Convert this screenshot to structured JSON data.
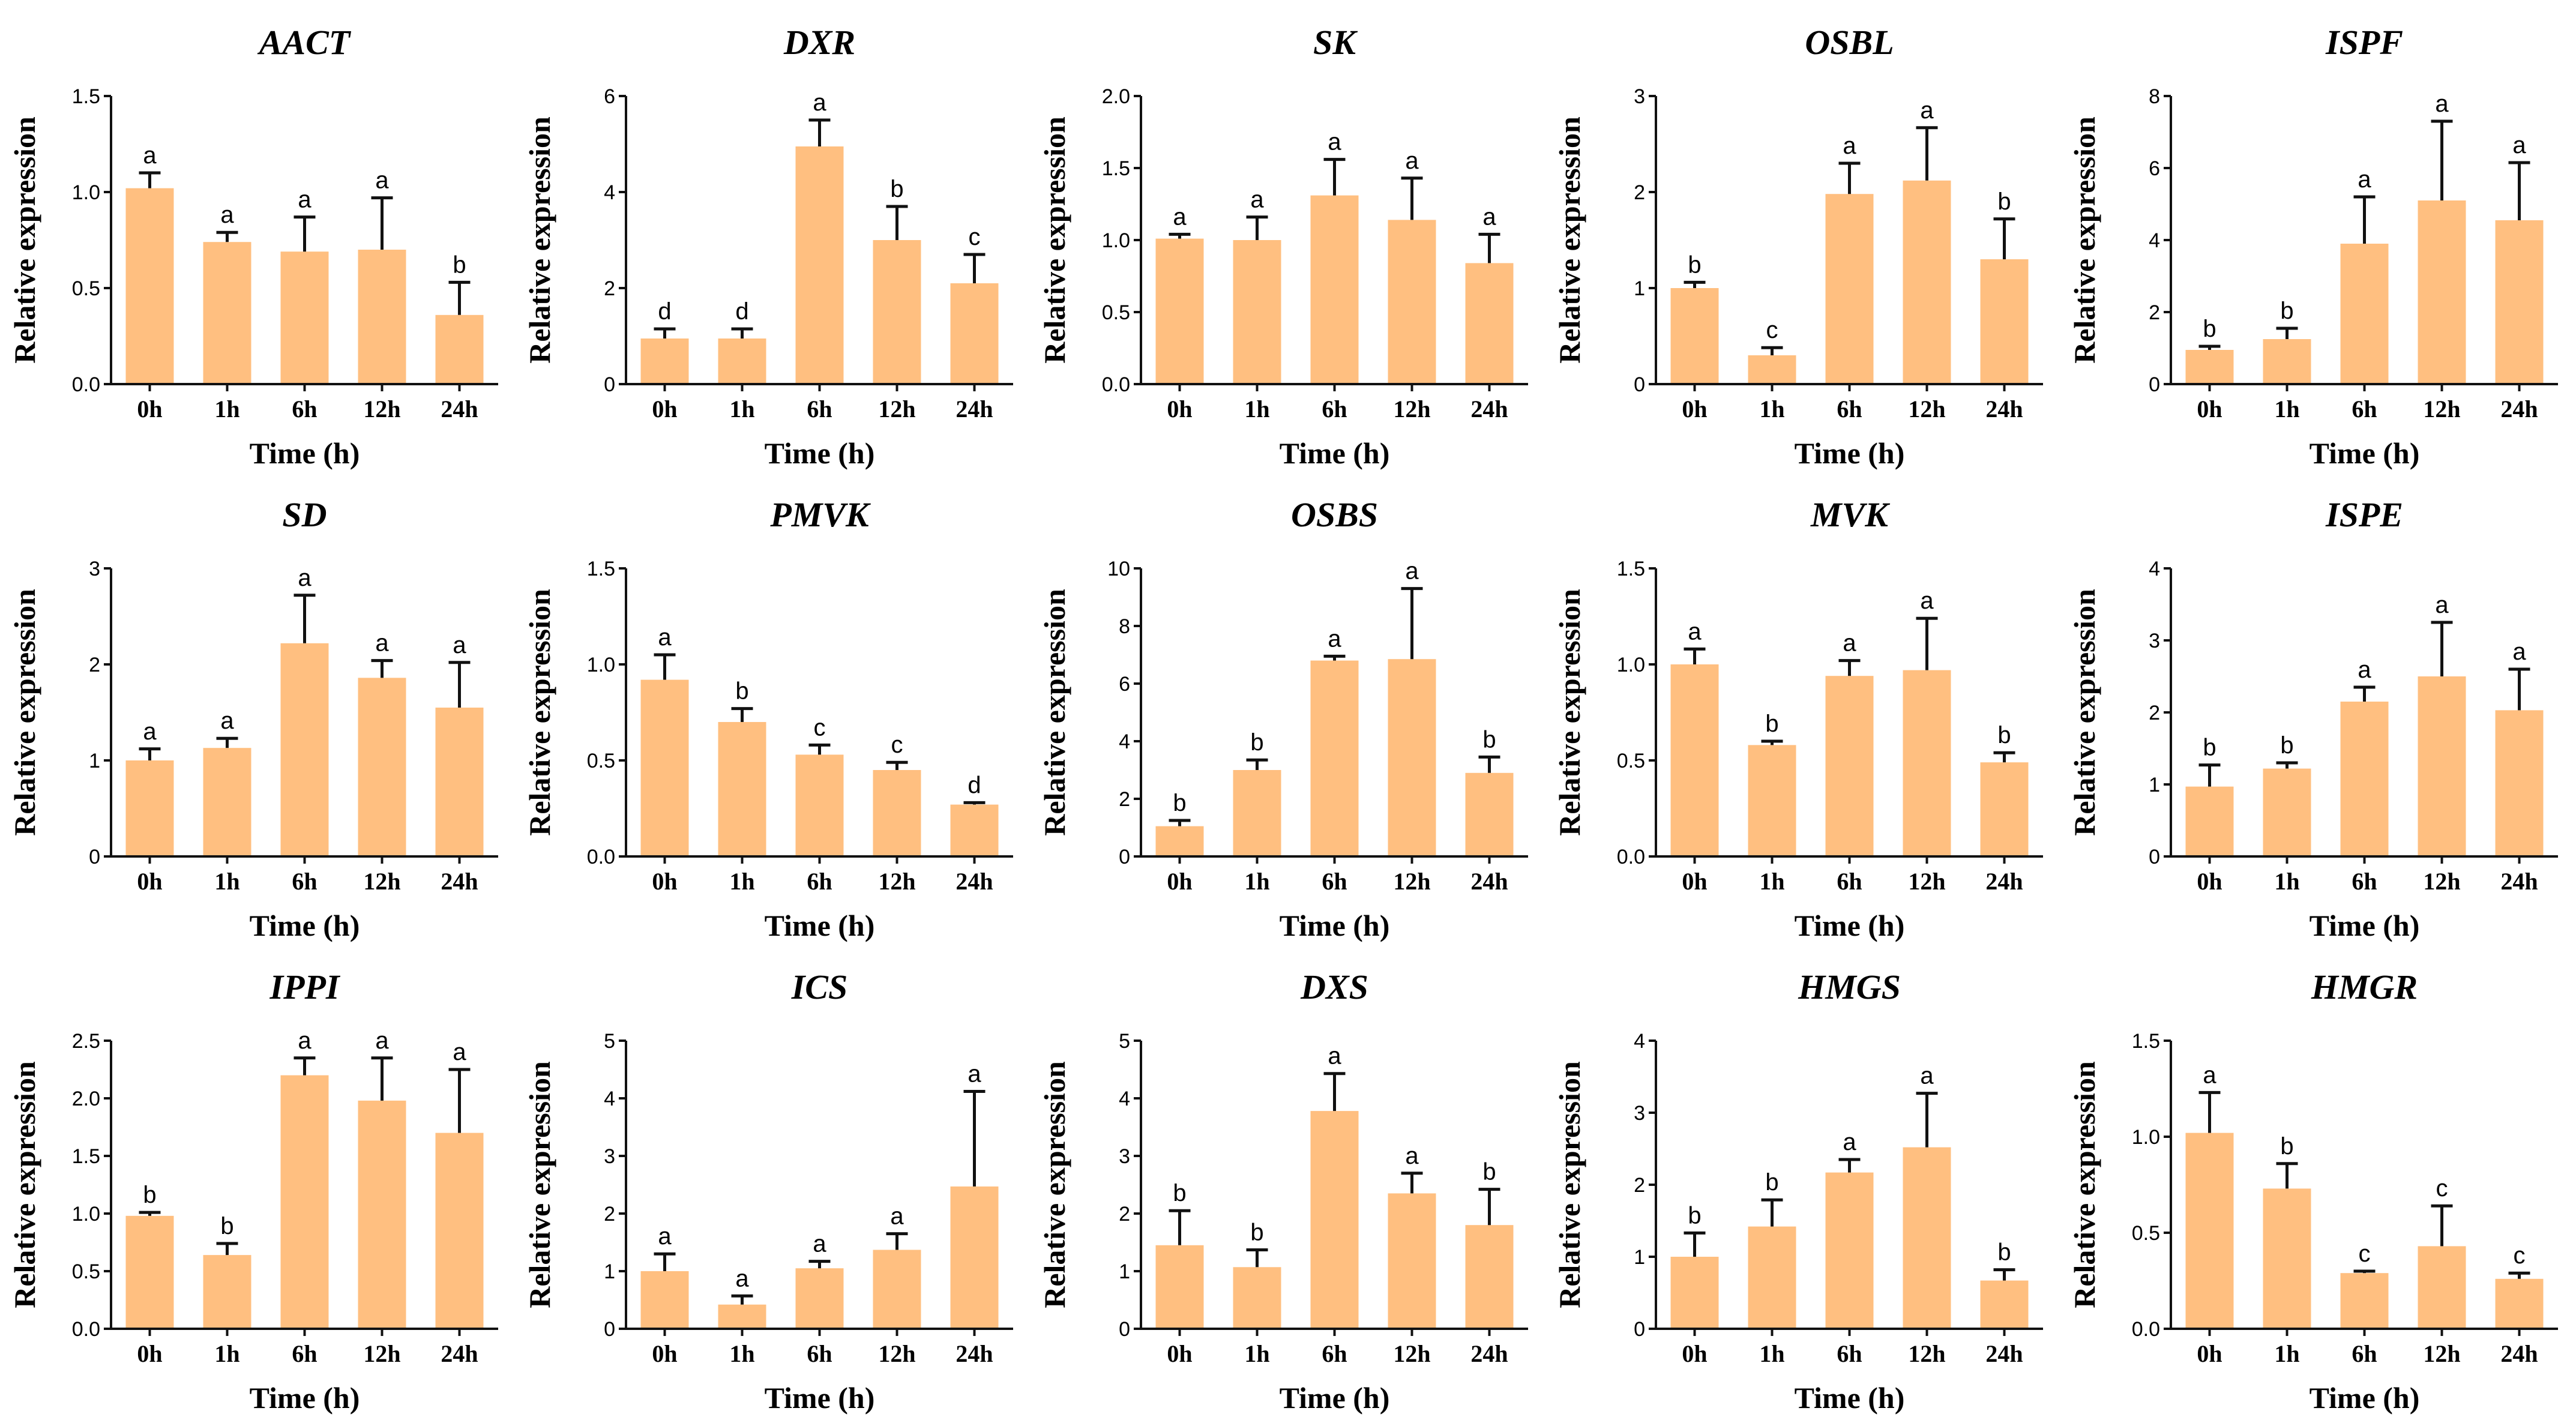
{
  "chart_data": [
    {
      "type": "bar",
      "title": "AACT",
      "xlabel": "Time (h)",
      "ylabel": "Relative expression",
      "categories": [
        "0h",
        "1h",
        "6h",
        "12h",
        "24h"
      ],
      "values": [
        1.02,
        0.74,
        0.69,
        0.7,
        0.36
      ],
      "errors": [
        0.08,
        0.05,
        0.18,
        0.27,
        0.17
      ],
      "letters": [
        "a",
        "a",
        "a",
        "a",
        "b"
      ],
      "ylim": [
        0,
        1.5
      ],
      "yticks": [
        "0.0",
        "0.5",
        "1.0",
        "1.5"
      ]
    },
    {
      "type": "bar",
      "title": "DXR",
      "xlabel": "Time (h)",
      "ylabel": "Relative expression",
      "categories": [
        "0h",
        "1h",
        "6h",
        "12h",
        "24h"
      ],
      "values": [
        0.95,
        0.95,
        4.95,
        3.0,
        2.1
      ],
      "errors": [
        0.2,
        0.2,
        0.55,
        0.7,
        0.6
      ],
      "letters": [
        "d",
        "d",
        "a",
        "b",
        "c"
      ],
      "ylim": [
        0,
        6
      ],
      "yticks": [
        "0",
        "2",
        "4",
        "6"
      ]
    },
    {
      "type": "bar",
      "title": "SK",
      "xlabel": "Time (h)",
      "ylabel": "Relative expression",
      "categories": [
        "0h",
        "1h",
        "6h",
        "12h",
        "24h"
      ],
      "values": [
        1.01,
        1.0,
        1.31,
        1.14,
        0.84
      ],
      "errors": [
        0.03,
        0.16,
        0.25,
        0.29,
        0.2
      ],
      "letters": [
        "a",
        "a",
        "a",
        "a",
        "a"
      ],
      "ylim": [
        0,
        2
      ],
      "yticks": [
        "0.0",
        "0.5",
        "1.0",
        "1.5",
        "2.0"
      ]
    },
    {
      "type": "bar",
      "title": "OSBL",
      "xlabel": "Time (h)",
      "ylabel": "Relative expression",
      "categories": [
        "0h",
        "1h",
        "6h",
        "12h",
        "24h"
      ],
      "values": [
        1.0,
        0.3,
        1.98,
        2.12,
        1.3
      ],
      "errors": [
        0.06,
        0.08,
        0.32,
        0.55,
        0.42
      ],
      "letters": [
        "b",
        "c",
        "a",
        "a",
        "b"
      ],
      "ylim": [
        0,
        3
      ],
      "yticks": [
        "0",
        "1",
        "2",
        "3"
      ]
    },
    {
      "type": "bar",
      "title": "ISPF",
      "xlabel": "Time (h)",
      "ylabel": "Relative expression",
      "categories": [
        "0h",
        "1h",
        "6h",
        "12h",
        "24h"
      ],
      "values": [
        0.95,
        1.25,
        3.9,
        5.1,
        4.55
      ],
      "errors": [
        0.1,
        0.3,
        1.3,
        2.2,
        1.6
      ],
      "letters": [
        "b",
        "b",
        "a",
        "a",
        "a"
      ],
      "ylim": [
        0,
        8
      ],
      "yticks": [
        "0",
        "2",
        "4",
        "6",
        "8"
      ]
    },
    {
      "type": "bar",
      "title": "SD",
      "xlabel": "Time (h)",
      "ylabel": "Relative expression",
      "categories": [
        "0h",
        "1h",
        "6h",
        "12h",
        "24h"
      ],
      "values": [
        1.0,
        1.13,
        2.22,
        1.86,
        1.55
      ],
      "errors": [
        0.12,
        0.1,
        0.5,
        0.18,
        0.47
      ],
      "letters": [
        "a",
        "a",
        "a",
        "a",
        "a"
      ],
      "ylim": [
        0,
        3
      ],
      "yticks": [
        "0",
        "1",
        "2",
        "3"
      ]
    },
    {
      "type": "bar",
      "title": "PMVK",
      "xlabel": "Time (h)",
      "ylabel": "Relative expression",
      "categories": [
        "0h",
        "1h",
        "6h",
        "12h",
        "24h"
      ],
      "values": [
        0.92,
        0.7,
        0.53,
        0.45,
        0.27
      ],
      "errors": [
        0.13,
        0.07,
        0.05,
        0.04,
        0.01
      ],
      "letters": [
        "a",
        "b",
        "c",
        "c",
        "d"
      ],
      "ylim": [
        0,
        1.5
      ],
      "yticks": [
        "0.0",
        "0.5",
        "1.0",
        "1.5"
      ]
    },
    {
      "type": "bar",
      "title": "OSBS",
      "xlabel": "Time (h)",
      "ylabel": "Relative expression",
      "categories": [
        "0h",
        "1h",
        "6h",
        "12h",
        "24h"
      ],
      "values": [
        1.05,
        3.0,
        6.8,
        6.85,
        2.9
      ],
      "errors": [
        0.2,
        0.35,
        0.15,
        2.45,
        0.55
      ],
      "letters": [
        "b",
        "b",
        "a",
        "a",
        "b"
      ],
      "ylim": [
        0,
        10
      ],
      "yticks": [
        "0",
        "2",
        "4",
        "6",
        "8",
        "10"
      ]
    },
    {
      "type": "bar",
      "title": "MVK",
      "xlabel": "Time (h)",
      "ylabel": "Relative expression",
      "categories": [
        "0h",
        "1h",
        "6h",
        "12h",
        "24h"
      ],
      "values": [
        1.0,
        0.58,
        0.94,
        0.97,
        0.49
      ],
      "errors": [
        0.08,
        0.02,
        0.08,
        0.27,
        0.05
      ],
      "letters": [
        "a",
        "b",
        "a",
        "a",
        "b"
      ],
      "ylim": [
        0,
        1.5
      ],
      "yticks": [
        "0.0",
        "0.5",
        "1.0",
        "1.5"
      ]
    },
    {
      "type": "bar",
      "title": "ISPE",
      "xlabel": "Time (h)",
      "ylabel": "Relative expression",
      "categories": [
        "0h",
        "1h",
        "6h",
        "12h",
        "24h"
      ],
      "values": [
        0.97,
        1.22,
        2.15,
        2.5,
        2.03
      ],
      "errors": [
        0.3,
        0.08,
        0.2,
        0.75,
        0.57
      ],
      "letters": [
        "b",
        "b",
        "a",
        "a",
        "a"
      ],
      "ylim": [
        0,
        4
      ],
      "yticks": [
        "0",
        "1",
        "2",
        "3",
        "4"
      ]
    },
    {
      "type": "bar",
      "title": "IPPI",
      "xlabel": "Time (h)",
      "ylabel": "Relative expression",
      "categories": [
        "0h",
        "1h",
        "6h",
        "12h",
        "24h"
      ],
      "values": [
        0.98,
        0.64,
        2.2,
        1.98,
        1.7
      ],
      "errors": [
        0.03,
        0.1,
        0.15,
        0.37,
        0.55
      ],
      "letters": [
        "b",
        "b",
        "a",
        "a",
        "a"
      ],
      "ylim": [
        0,
        2.5
      ],
      "yticks": [
        "0.0",
        "0.5",
        "1.0",
        "1.5",
        "2.0",
        "2.5"
      ]
    },
    {
      "type": "bar",
      "title": "ICS",
      "xlabel": "Time (h)",
      "ylabel": "Relative expression",
      "categories": [
        "0h",
        "1h",
        "6h",
        "12h",
        "24h"
      ],
      "values": [
        1.0,
        0.42,
        1.05,
        1.37,
        2.47
      ],
      "errors": [
        0.3,
        0.15,
        0.12,
        0.28,
        1.65
      ],
      "letters": [
        "a",
        "a",
        "a",
        "a",
        "a"
      ],
      "ylim": [
        0,
        5
      ],
      "yticks": [
        "0",
        "1",
        "2",
        "3",
        "4",
        "5"
      ]
    },
    {
      "type": "bar",
      "title": "DXS",
      "xlabel": "Time (h)",
      "ylabel": "Relative expression",
      "categories": [
        "0h",
        "1h",
        "6h",
        "12h",
        "24h"
      ],
      "values": [
        1.45,
        1.07,
        3.78,
        2.35,
        1.8
      ],
      "errors": [
        0.6,
        0.3,
        0.65,
        0.35,
        0.62
      ],
      "letters": [
        "b",
        "b",
        "a",
        "a",
        "b"
      ],
      "ylim": [
        0,
        5
      ],
      "yticks": [
        "0",
        "1",
        "2",
        "3",
        "4",
        "5"
      ]
    },
    {
      "type": "bar",
      "title": "HMGS",
      "xlabel": "Time (h)",
      "ylabel": "Relative expression",
      "categories": [
        "0h",
        "1h",
        "6h",
        "12h",
        "24h"
      ],
      "values": [
        1.0,
        1.42,
        2.17,
        2.52,
        0.67
      ],
      "errors": [
        0.33,
        0.37,
        0.18,
        0.75,
        0.15
      ],
      "letters": [
        "b",
        "b",
        "a",
        "a",
        "b"
      ],
      "ylim": [
        0,
        4
      ],
      "yticks": [
        "0",
        "1",
        "2",
        "3",
        "4"
      ]
    },
    {
      "type": "bar",
      "title": "HMGR",
      "xlabel": "Time (h)",
      "ylabel": "Relative expression",
      "categories": [
        "0h",
        "1h",
        "6h",
        "12h",
        "24h"
      ],
      "values": [
        1.02,
        0.73,
        0.29,
        0.43,
        0.26
      ],
      "errors": [
        0.21,
        0.13,
        0.01,
        0.21,
        0.03
      ],
      "letters": [
        "a",
        "b",
        "c",
        "c",
        "c"
      ],
      "ylim": [
        0,
        1.5
      ],
      "yticks": [
        "0.0",
        "0.5",
        "1.0",
        "1.5"
      ]
    }
  ],
  "colors": {
    "bar": "#FFBF80",
    "axis": "#111111"
  }
}
